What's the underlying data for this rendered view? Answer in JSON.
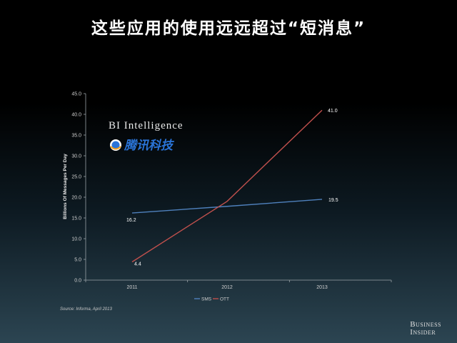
{
  "title": "这些应用的使用远远超过“短消息”",
  "watermark": {
    "line1": "BI Intelligence",
    "line2": "腾讯科技"
  },
  "source": "Source: Informa, April 2013",
  "logo": {
    "line1": "Business",
    "line2": "Insider"
  },
  "colors": {
    "sms": "#4f81bd",
    "ott": "#c0504d"
  },
  "chart_data": {
    "type": "line",
    "title": "",
    "xlabel": "",
    "ylabel": "Billions Of Messages Per Day",
    "categories": [
      "2011",
      "2012",
      "2013"
    ],
    "ylim": [
      0,
      45
    ],
    "yticks": [
      "0.0",
      "5.0",
      "10.0",
      "15.0",
      "20.0",
      "25.0",
      "30.0",
      "35.0",
      "40.0",
      "45.0"
    ],
    "series": [
      {
        "name": "SMS",
        "values": [
          16.2,
          17.8,
          19.5
        ],
        "labels": [
          "16.2",
          null,
          "19.5"
        ]
      },
      {
        "name": "OTT",
        "values": [
          4.4,
          19.0,
          41.0
        ],
        "labels": [
          "4.4",
          null,
          "41.0"
        ]
      }
    ],
    "legend": "bottom",
    "grid": false
  }
}
